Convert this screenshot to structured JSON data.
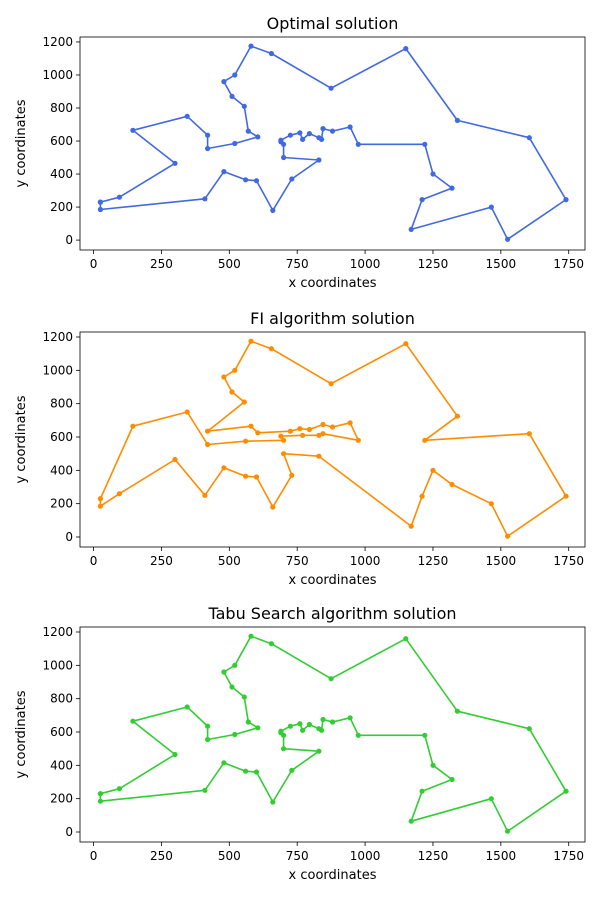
{
  "chart_data": [
    {
      "type": "line",
      "title": "Optimal solution",
      "xlabel": "x coordinates",
      "ylabel": "y coordinates",
      "xlim": [
        -50,
        1810
      ],
      "ylim": [
        -60,
        1230
      ],
      "xticks": [
        "0",
        "250",
        "500",
        "750",
        "1000",
        "1250",
        "1500",
        "1750"
      ],
      "yticks": [
        "0",
        "200",
        "400",
        "600",
        "800",
        "1000",
        "1200"
      ],
      "color": "#4169e1",
      "series": [
        {
          "x": [
            25,
            25,
            410,
            480,
            560,
            600,
            660,
            730,
            830,
            700,
            700,
            690,
            690,
            725,
            760,
            770,
            795,
            830,
            840,
            845,
            880,
            945,
            975,
            1220,
            1250,
            1320,
            1210,
            1170,
            1465,
            1525,
            1740,
            1605,
            1340,
            1150,
            875,
            655,
            580,
            520,
            480,
            510,
            555,
            570,
            605,
            520,
            420,
            420,
            345,
            145,
            300,
            95,
            25
          ],
          "y": [
            230,
            185,
            250,
            415,
            365,
            360,
            180,
            370,
            485,
            500,
            580,
            595,
            605,
            635,
            650,
            610,
            645,
            620,
            610,
            675,
            660,
            685,
            580,
            580,
            400,
            315,
            245,
            65,
            200,
            5,
            245,
            620,
            725,
            1160,
            920,
            1130,
            1175,
            1000,
            960,
            870,
            810,
            660,
            625,
            585,
            555,
            635,
            750,
            665,
            465,
            260,
            230
          ]
        }
      ]
    },
    {
      "type": "line",
      "title": "FI algorithm solution",
      "xlabel": "x coordinates",
      "ylabel": "y coordinates",
      "xlim": [
        -50,
        1810
      ],
      "ylim": [
        -60,
        1230
      ],
      "xticks": [
        "0",
        "250",
        "500",
        "750",
        "1000",
        "1250",
        "1500",
        "1750"
      ],
      "yticks": [
        "0",
        "200",
        "400",
        "600",
        "800",
        "1000",
        "1200"
      ],
      "color": "#ff8c00",
      "series": [
        {
          "x": [
            25,
            25,
            95,
            300,
            410,
            480,
            560,
            600,
            660,
            730,
            700,
            830,
            1170,
            1210,
            1250,
            1320,
            1465,
            1525,
            1740,
            1605,
            1220,
            1340,
            1150,
            875,
            655,
            580,
            520,
            480,
            510,
            555,
            420,
            580,
            605,
            725,
            760,
            795,
            845,
            880,
            945,
            975,
            845,
            830,
            770,
            690,
            700,
            560,
            420,
            345,
            145,
            25
          ],
          "y": [
            230,
            185,
            260,
            465,
            250,
            415,
            365,
            360,
            180,
            370,
            500,
            485,
            65,
            245,
            400,
            315,
            200,
            5,
            245,
            620,
            580,
            725,
            1160,
            920,
            1130,
            1175,
            1000,
            960,
            870,
            810,
            635,
            665,
            625,
            635,
            650,
            645,
            675,
            660,
            685,
            580,
            620,
            610,
            610,
            605,
            580,
            575,
            555,
            750,
            665,
            230
          ]
        }
      ]
    },
    {
      "type": "line",
      "title": "Tabu Search algorithm solution",
      "xlabel": "x coordinates",
      "ylabel": "y coordinates",
      "xlim": [
        -50,
        1810
      ],
      "ylim": [
        -60,
        1230
      ],
      "xticks": [
        "0",
        "250",
        "500",
        "750",
        "1000",
        "1250",
        "1500",
        "1750"
      ],
      "yticks": [
        "0",
        "200",
        "400",
        "600",
        "800",
        "1000",
        "1200"
      ],
      "color": "#32cd32",
      "series": [
        {
          "x": [
            25,
            25,
            410,
            480,
            560,
            600,
            660,
            730,
            830,
            700,
            700,
            690,
            690,
            725,
            760,
            770,
            795,
            830,
            840,
            845,
            880,
            945,
            975,
            1220,
            1250,
            1320,
            1210,
            1170,
            1465,
            1525,
            1740,
            1605,
            1340,
            1150,
            875,
            655,
            580,
            520,
            480,
            510,
            555,
            570,
            605,
            520,
            420,
            420,
            345,
            145,
            300,
            95,
            25
          ],
          "y": [
            230,
            185,
            250,
            415,
            365,
            360,
            180,
            370,
            485,
            500,
            580,
            595,
            605,
            635,
            650,
            610,
            645,
            620,
            610,
            675,
            660,
            685,
            580,
            580,
            400,
            315,
            245,
            65,
            200,
            5,
            245,
            620,
            725,
            1160,
            920,
            1130,
            1175,
            1000,
            960,
            870,
            810,
            660,
            625,
            585,
            555,
            635,
            750,
            665,
            465,
            260,
            230
          ]
        }
      ]
    }
  ]
}
